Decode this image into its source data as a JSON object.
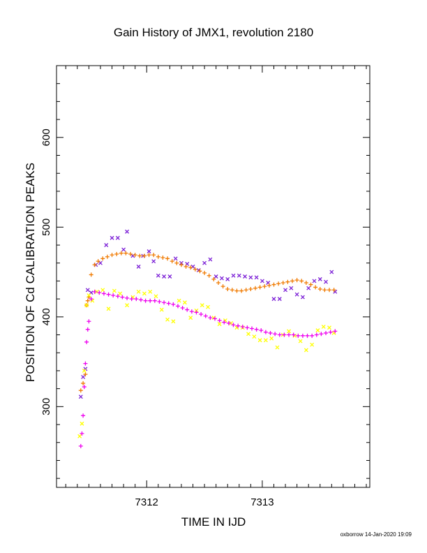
{
  "chart": {
    "title": "Gain History of JMX1, revolution 2180",
    "xlabel": "TIME IN IJD",
    "ylabel": "POSITION OF Cd CALIBRATION PEAKS",
    "footer": "oxborrow 14-Jan-2020 19:09"
  },
  "chart_data": {
    "type": "scatter",
    "title": "Gain History of JMX1, revolution 2180",
    "xlabel": "TIME IN IJD",
    "ylabel": "POSITION OF Cd CALIBRATION PEAKS",
    "xlim": [
      7311.22,
      7313.93
    ],
    "ylim": [
      210,
      680
    ],
    "xticks": [
      7312,
      7313
    ],
    "yticks": [
      300,
      400,
      500,
      600
    ],
    "colors": {
      "purple": "#7b1fd6",
      "orange": "#f07a00",
      "yellow": "#ffff00",
      "magenta": "#ee00ee"
    },
    "series": [
      {
        "color": "purple",
        "marker": "x",
        "x": [
          7311.43,
          7311.45,
          7311.47,
          7311.49,
          7311.52,
          7311.56,
          7311.6,
          7311.65,
          7311.7,
          7311.75,
          7311.8,
          7311.83,
          7311.88,
          7311.93,
          7311.97,
          7312.02,
          7312.06,
          7312.1,
          7312.15,
          7312.2,
          7312.25,
          7312.3,
          7312.35,
          7312.4,
          7312.45,
          7312.5,
          7312.55,
          7312.6,
          7312.65,
          7312.7,
          7312.75,
          7312.8,
          7312.85,
          7312.9,
          7312.95,
          7313.0,
          7313.05,
          7313.1,
          7313.15,
          7313.2,
          7313.25,
          7313.3,
          7313.35,
          7313.4,
          7313.45,
          7313.5,
          7313.55,
          7313.6,
          7313.63
        ],
        "y": [
          311,
          333,
          342,
          430,
          427,
          458,
          460,
          480,
          488,
          488,
          475,
          495,
          468,
          456,
          468,
          473,
          462,
          446,
          445,
          445,
          465,
          460,
          459,
          456,
          452,
          460,
          464,
          445,
          443,
          442,
          446,
          446,
          445,
          444,
          444,
          440,
          438,
          420,
          420,
          430,
          432,
          425,
          422,
          432,
          440,
          442,
          439,
          450,
          428
        ]
      },
      {
        "color": "orange",
        "marker": "+",
        "x": [
          7311.43,
          7311.45,
          7311.47,
          7311.48,
          7311.49,
          7311.5,
          7311.52,
          7311.55,
          7311.58,
          7311.62,
          7311.66,
          7311.7,
          7311.74,
          7311.78,
          7311.82,
          7311.86,
          7311.9,
          7311.94,
          7311.98,
          7312.02,
          7312.06,
          7312.1,
          7312.14,
          7312.18,
          7312.22,
          7312.26,
          7312.3,
          7312.34,
          7312.38,
          7312.42,
          7312.46,
          7312.5,
          7312.54,
          7312.58,
          7312.62,
          7312.66,
          7312.7,
          7312.74,
          7312.78,
          7312.82,
          7312.86,
          7312.9,
          7312.94,
          7312.98,
          7313.02,
          7313.06,
          7313.1,
          7313.14,
          7313.18,
          7313.22,
          7313.26,
          7313.3,
          7313.34,
          7313.38,
          7313.42,
          7313.46,
          7313.5,
          7313.54,
          7313.58,
          7313.62
        ],
        "y": [
          318,
          326,
          336,
          413,
          418,
          422,
          447,
          458,
          462,
          465,
          467,
          469,
          470,
          471,
          471,
          470,
          469,
          468,
          468,
          469,
          469,
          467,
          466,
          465,
          462,
          460,
          458,
          456,
          455,
          453,
          451,
          449,
          446,
          442,
          438,
          434,
          431,
          430,
          429,
          429,
          430,
          431,
          432,
          433,
          434,
          435,
          436,
          437,
          438,
          439,
          440,
          441,
          440,
          438,
          436,
          433,
          431,
          430,
          430,
          430
        ]
      },
      {
        "color": "yellow",
        "marker": "x",
        "x": [
          7311.42,
          7311.44,
          7311.46,
          7311.48,
          7311.5,
          7311.53,
          7311.57,
          7311.62,
          7311.67,
          7311.72,
          7311.77,
          7311.83,
          7311.88,
          7311.93,
          7311.98,
          7312.03,
          7312.08,
          7312.13,
          7312.18,
          7312.23,
          7312.28,
          7312.33,
          7312.38,
          7312.43,
          7312.48,
          7312.53,
          7312.58,
          7312.63,
          7312.68,
          7312.73,
          7312.78,
          7312.83,
          7312.88,
          7312.93,
          7312.98,
          7313.03,
          7313.08,
          7313.13,
          7313.18,
          7313.23,
          7313.28,
          7313.33,
          7313.38,
          7313.43,
          7313.48,
          7313.53,
          7313.58,
          7313.62
        ],
        "y": [
          267,
          281,
          340,
          413,
          424,
          418,
          428,
          430,
          409,
          429,
          426,
          413,
          422,
          428,
          426,
          428,
          423,
          408,
          397,
          395,
          418,
          416,
          399,
          407,
          413,
          411,
          399,
          392,
          396,
          393,
          388,
          388,
          381,
          378,
          374,
          374,
          376,
          366,
          380,
          384,
          379,
          373,
          363,
          369,
          385,
          389,
          388,
          382
        ]
      },
      {
        "color": "magenta",
        "marker": "+",
        "x": [
          7311.43,
          7311.44,
          7311.45,
          7311.46,
          7311.47,
          7311.48,
          7311.49,
          7311.5,
          7311.52,
          7311.55,
          7311.59,
          7311.63,
          7311.67,
          7311.71,
          7311.75,
          7311.79,
          7311.83,
          7311.87,
          7311.91,
          7311.95,
          7311.99,
          7312.03,
          7312.07,
          7312.11,
          7312.15,
          7312.19,
          7312.23,
          7312.27,
          7312.31,
          7312.35,
          7312.39,
          7312.43,
          7312.47,
          7312.51,
          7312.55,
          7312.59,
          7312.63,
          7312.67,
          7312.71,
          7312.75,
          7312.79,
          7312.83,
          7312.87,
          7312.91,
          7312.95,
          7312.99,
          7313.03,
          7313.07,
          7313.11,
          7313.15,
          7313.19,
          7313.23,
          7313.27,
          7313.31,
          7313.35,
          7313.39,
          7313.43,
          7313.47,
          7313.51,
          7313.55,
          7313.59,
          7313.63
        ],
        "y": [
          256,
          270,
          290,
          322,
          348,
          372,
          386,
          395,
          420,
          428,
          427,
          426,
          425,
          424,
          423,
          422,
          421,
          420,
          420,
          419,
          418,
          418,
          418,
          417,
          416,
          415,
          414,
          412,
          410,
          408,
          406,
          405,
          403,
          401,
          399,
          398,
          396,
          394,
          393,
          391,
          390,
          389,
          388,
          387,
          386,
          385,
          383,
          382,
          381,
          380,
          380,
          380,
          380,
          379,
          379,
          379,
          379,
          380,
          381,
          382,
          383,
          384
        ]
      }
    ]
  }
}
